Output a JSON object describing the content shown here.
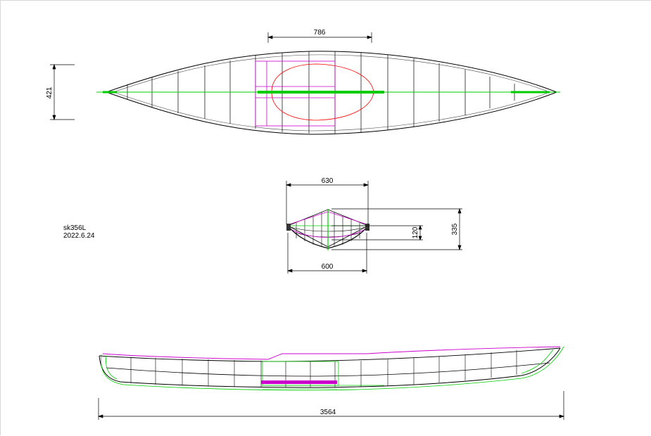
{
  "drawing": {
    "model": "sk356L",
    "date": "2022.6.24"
  },
  "dimensions": {
    "cockpit_length": "786",
    "beam_plan": "421",
    "beam_top": "630",
    "beam_bottom": "600",
    "depth_small": "120",
    "depth_total": "335",
    "overall_length": "3564"
  },
  "colors": {
    "outline": "#000000",
    "centerline": "#00cc00",
    "cockpit": "#ff0000",
    "frames": "#cc00cc"
  }
}
